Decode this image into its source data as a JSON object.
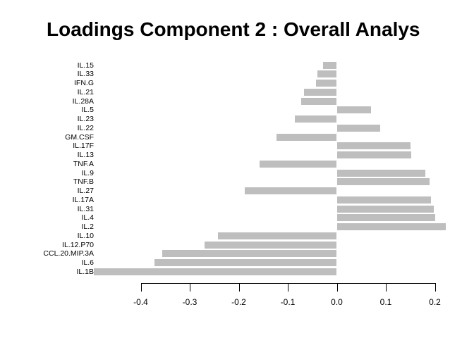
{
  "title": "Loadings Component 2 : Overall Analys",
  "colors": {
    "background": "#ffffff",
    "bar": "#bebebe",
    "text": "#000000",
    "axis": "#000000"
  },
  "chart_data": {
    "type": "bar",
    "orientation": "horizontal",
    "title": "Loadings Component 2 : Overall Analys",
    "categories": [
      "IL.15",
      "IL.33",
      "IFN.G",
      "IL.21",
      "IL.28A",
      "IL.5",
      "IL.23",
      "IL.22",
      "GM.CSF",
      "IL.17F",
      "IL.13",
      "TNF.A",
      "IL.9",
      "TNF.B",
      "IL.27",
      "IL.17A",
      "IL.31",
      "IL.4",
      "IL.2",
      "IL.10",
      "IL.12.P70",
      "CCL.20.MIP.3A",
      "IL.6",
      "IL.1B"
    ],
    "values": [
      -0.028,
      -0.04,
      -0.042,
      -0.067,
      -0.072,
      0.07,
      -0.085,
      0.088,
      -0.123,
      0.15,
      0.152,
      -0.158,
      0.18,
      0.189,
      -0.188,
      0.192,
      0.198,
      0.201,
      0.223,
      -0.242,
      -0.27,
      -0.356,
      -0.372,
      -0.495
    ],
    "xlabel": "",
    "ylabel": "",
    "xlim": [
      -0.52,
      0.25
    ],
    "x_ticks": [
      -0.4,
      -0.3,
      -0.2,
      -0.1,
      0.0,
      0.1,
      0.2
    ],
    "x_tick_labels": [
      "-0.4",
      "-0.3",
      "-0.2",
      "-0.1",
      "0.0",
      "0.1",
      "0.2"
    ],
    "grid": false,
    "legend": false,
    "bar_color": "#bebebe"
  }
}
